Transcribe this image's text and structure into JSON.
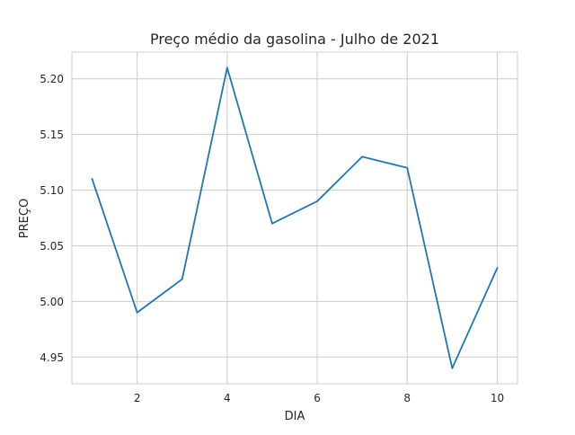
{
  "chart_data": {
    "type": "line",
    "title": "Preço médio da gasolina - Julho de 2021",
    "xlabel": "DIA",
    "ylabel": "PREÇO",
    "x": [
      1,
      2,
      3,
      4,
      5,
      6,
      7,
      8,
      9,
      10
    ],
    "series": [
      {
        "values": [
          5.11,
          4.99,
          5.02,
          5.21,
          5.07,
          5.09,
          5.13,
          5.12,
          4.94,
          5.03
        ],
        "color": "#1f77b4"
      }
    ],
    "xticks": [
      2,
      4,
      6,
      8,
      10
    ],
    "xtick_labels": [
      "2",
      "4",
      "6",
      "8",
      "10"
    ],
    "yticks": [
      4.95,
      5.0,
      5.05,
      5.1,
      5.15,
      5.2
    ],
    "ytick_labels": [
      "4.95",
      "5.00",
      "5.05",
      "5.10",
      "5.15",
      "5.20"
    ],
    "xlim": [
      0.55,
      10.45
    ],
    "ylim": [
      4.926,
      5.224
    ],
    "grid": true,
    "grid_color": "#cccccc",
    "spine_color": "#cccccc",
    "background": "#ffffff"
  }
}
